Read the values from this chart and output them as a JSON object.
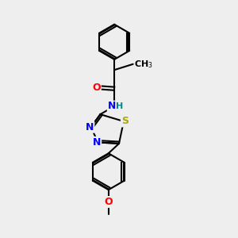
{
  "background_color": "#eeeeee",
  "bond_color": "#000000",
  "atom_colors": {
    "O": "#ff0000",
    "N": "#0000ff",
    "S": "#aaaa00",
    "H": "#008888",
    "C": "#000000"
  },
  "figsize": [
    3.0,
    3.0
  ],
  "dpi": 100
}
